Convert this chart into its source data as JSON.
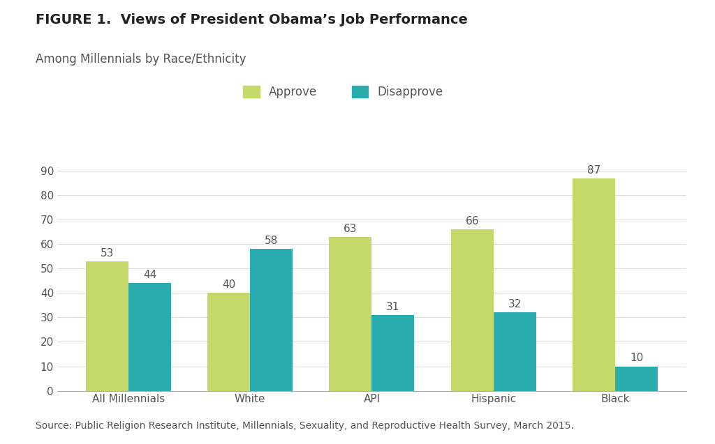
{
  "title_bold": "FIGURE 1.  Views of President Obama’s Job Performance",
  "subtitle": "Among Millennials by Race/Ethnicity",
  "source": "Source: Public Religion Research Institute, Millennials, Sexuality, and Reproductive Health Survey, March 2015.",
  "categories": [
    "All Millennials",
    "White",
    "API",
    "Hispanic",
    "Black"
  ],
  "approve": [
    53,
    40,
    63,
    66,
    87
  ],
  "disapprove": [
    44,
    58,
    31,
    32,
    10
  ],
  "approve_color": "#c5d96b",
  "disapprove_color": "#2aabae",
  "background_color": "#ffffff",
  "legend_labels": [
    "Approve",
    "Disapprove"
  ],
  "ylim": [
    0,
    100
  ],
  "yticks": [
    0,
    10,
    20,
    30,
    40,
    50,
    60,
    70,
    80,
    90
  ],
  "bar_width": 0.35,
  "value_fontsize": 11,
  "tick_fontsize": 11,
  "title_fontsize": 14,
  "subtitle_fontsize": 12,
  "source_fontsize": 10,
  "legend_fontsize": 12
}
